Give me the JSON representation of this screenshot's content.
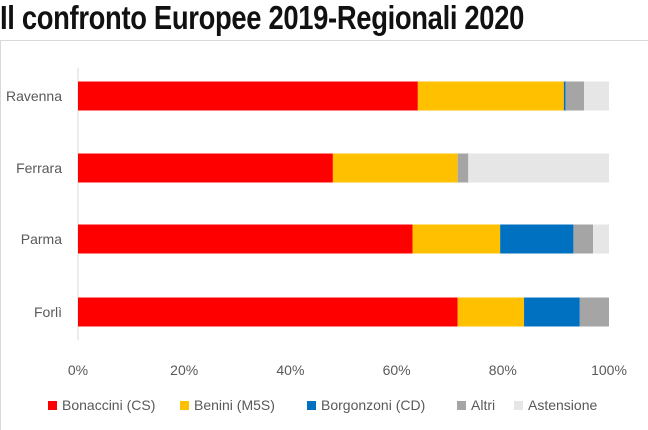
{
  "title": "Il confronto Europee 2019-Regionali 2020",
  "chart_data": {
    "type": "bar",
    "orientation": "horizontal",
    "stacked": true,
    "categories": [
      "Ravenna",
      "Ferrara",
      "Parma",
      "Forlì"
    ],
    "series": [
      {
        "name": "Bonaccini (CS)",
        "color": "#ff0000",
        "values": [
          64,
          48,
          63,
          71.5
        ]
      },
      {
        "name": "Benini (M5S)",
        "color": "#ffc000",
        "values": [
          27.5,
          23.5,
          16.5,
          12.5
        ]
      },
      {
        "name": "Borgonzoni (CD)",
        "color": "#0070c0",
        "values": [
          0.3,
          0,
          13.8,
          10.5
        ]
      },
      {
        "name": "Altri",
        "color": "#a5a5a5",
        "values": [
          3.5,
          2,
          3.7,
          5.5
        ]
      },
      {
        "name": "Astensione",
        "color": "#e7e6e6",
        "values": [
          4.7,
          26.5,
          3,
          0
        ]
      }
    ],
    "xticks": [
      "0%",
      "20%",
      "40%",
      "60%",
      "80%",
      "100%"
    ],
    "xlim": [
      0,
      100
    ],
    "legend": "bottom"
  }
}
